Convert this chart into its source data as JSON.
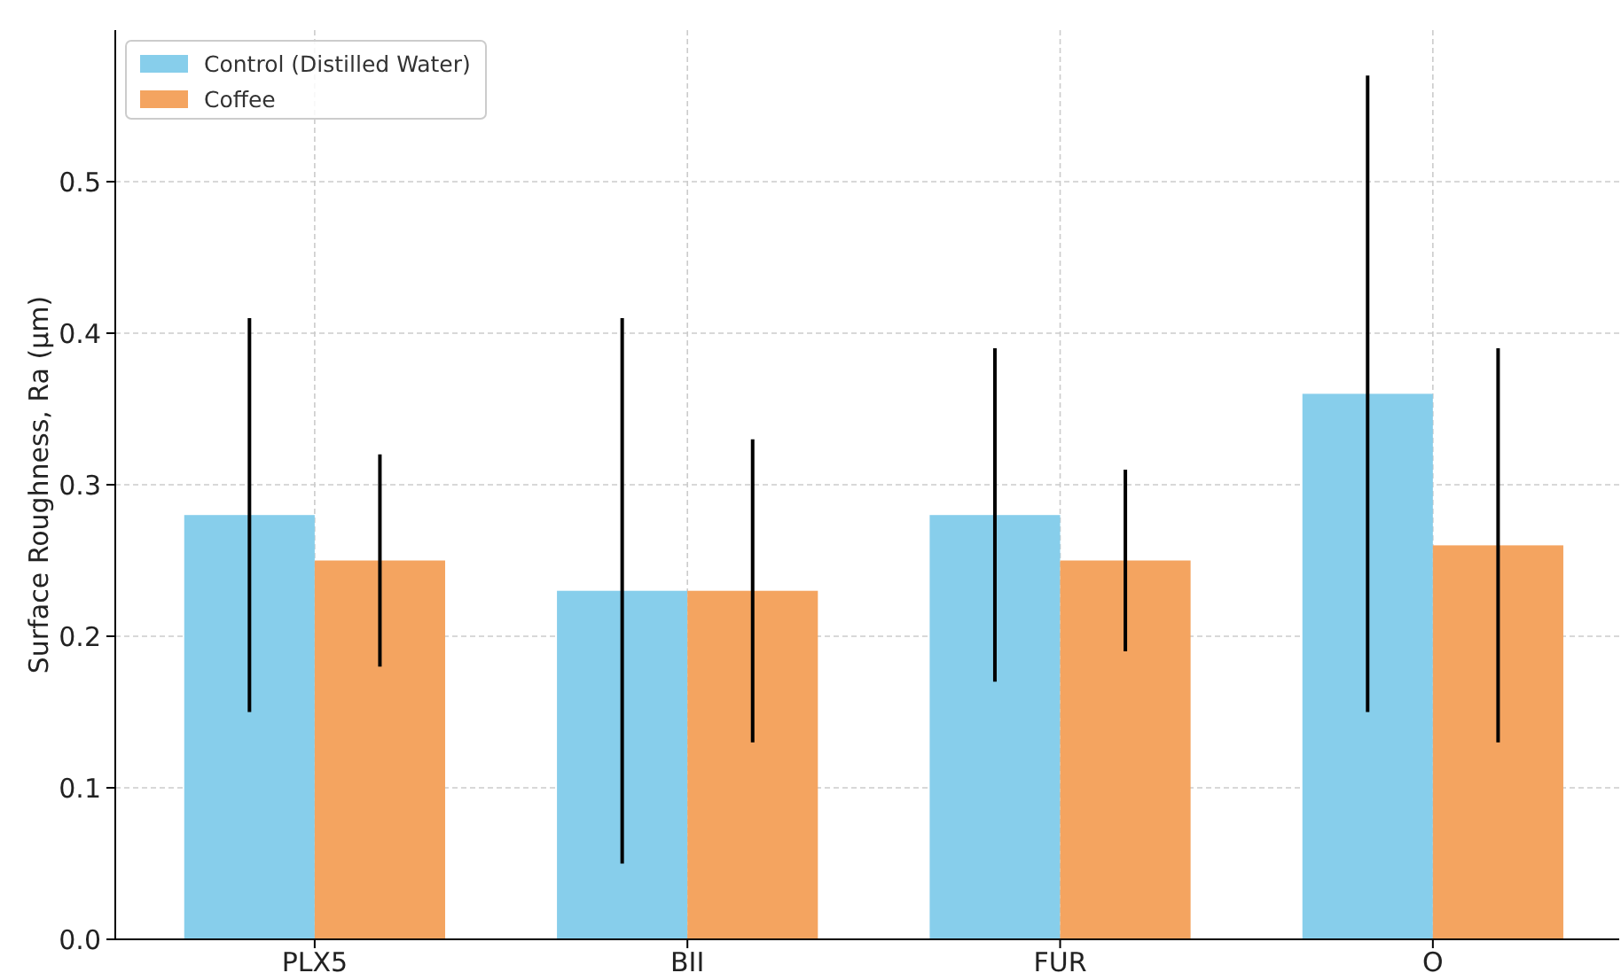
{
  "chart_data": {
    "type": "bar",
    "ylabel": "Surface Roughness, Ra (µm)",
    "categories": [
      "PLX5",
      "BII",
      "FUR",
      "O"
    ],
    "series": [
      {
        "name": "Control (Distilled Water)",
        "color": "#87ceeb",
        "values": [
          0.28,
          0.23,
          0.28,
          0.36
        ],
        "errors": [
          0.13,
          0.18,
          0.11,
          0.21
        ]
      },
      {
        "name": "Coffee",
        "color": "#f4a460",
        "values": [
          0.25,
          0.23,
          0.25,
          0.26
        ],
        "errors": [
          0.07,
          0.1,
          0.06,
          0.13
        ]
      }
    ],
    "ylim": [
      0,
      0.6
    ],
    "yticks": [
      {
        "value": 0,
        "label": "0.0"
      },
      0.1,
      0.2,
      0.3,
      0.4,
      0.5
    ],
    "grid": true,
    "legend": "top left"
  }
}
